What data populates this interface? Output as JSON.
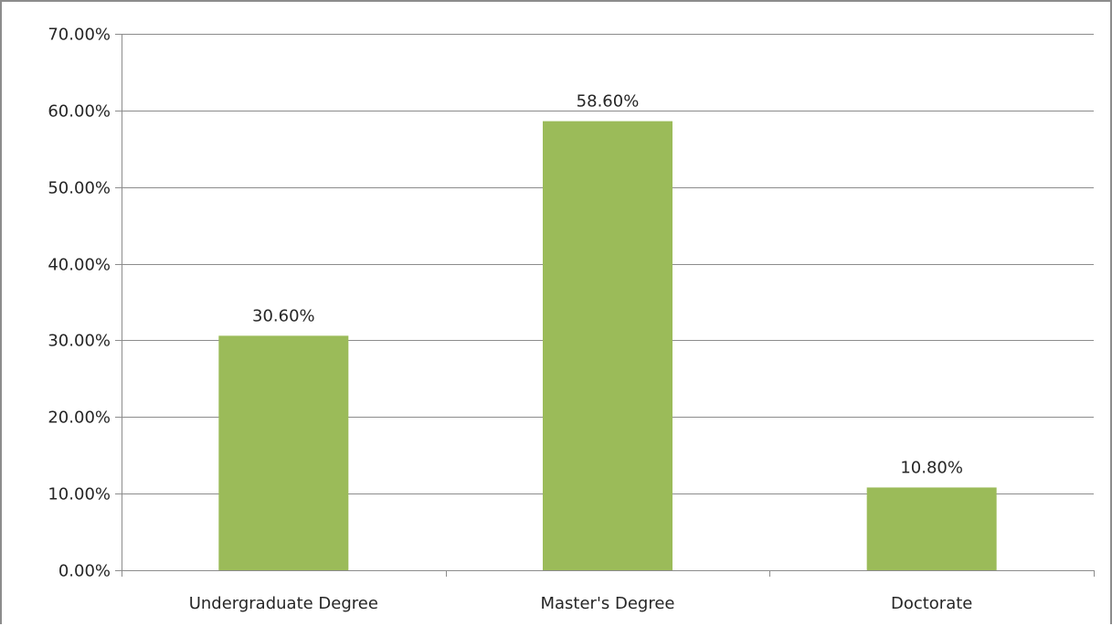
{
  "chart_data": {
    "type": "bar",
    "categories": [
      "Undergraduate Degree",
      "Master's Degree",
      "Doctorate"
    ],
    "values": [
      30.6,
      58.6,
      10.8
    ],
    "data_labels": [
      "30.60%",
      "58.60%",
      "10.80%"
    ],
    "yticks": [
      0,
      10,
      20,
      30,
      40,
      50,
      60,
      70
    ],
    "ytick_labels": [
      "0.00%",
      "10.00%",
      "20.00%",
      "30.00%",
      "40.00%",
      "50.00%",
      "60.00%",
      "70.00%"
    ],
    "ylim": [
      0,
      70
    ],
    "grid": true,
    "legend": "none",
    "bar_color": "#9bbb59",
    "gridline_color": "#8c8c8c",
    "axis_color": "#8c8c8c",
    "title": "",
    "xlabel": "",
    "ylabel": ""
  }
}
